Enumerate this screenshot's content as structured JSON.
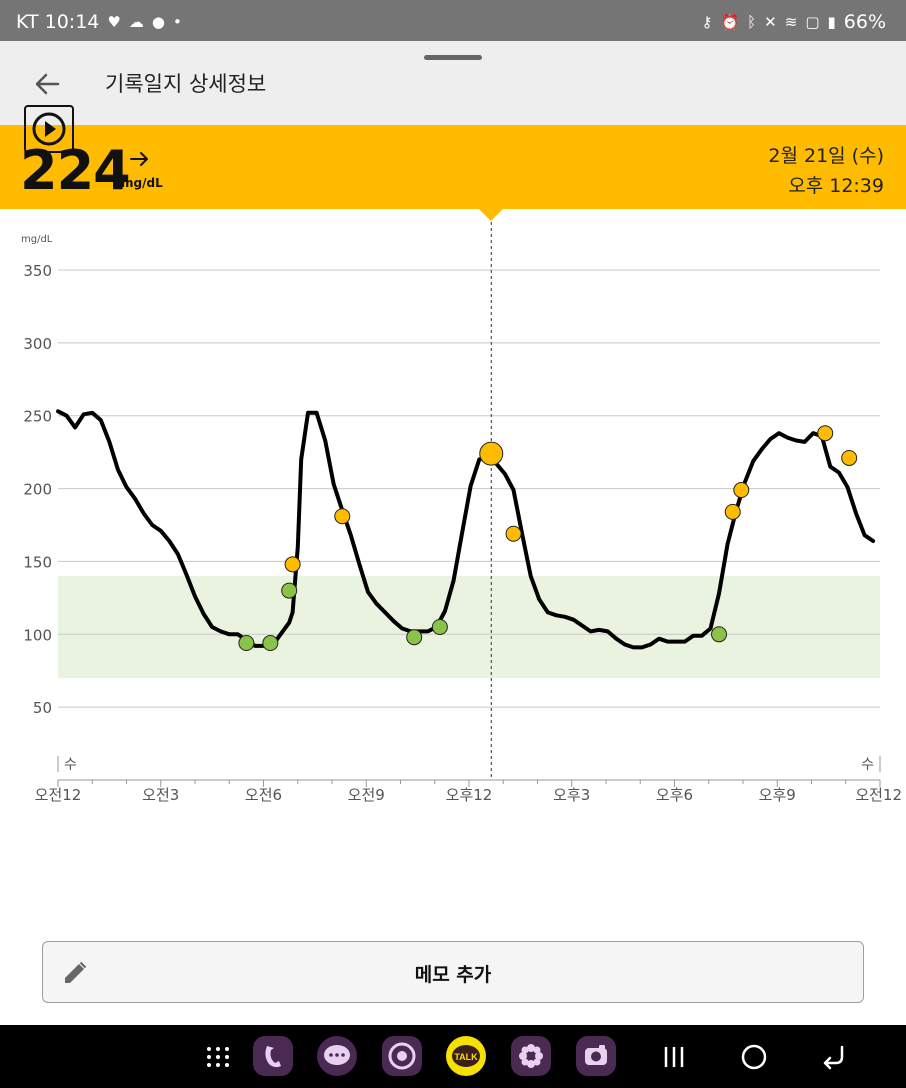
{
  "status": {
    "carrier_time": "KT 10:14",
    "battery": "66%",
    "left_icons": [
      "heart-icon",
      "cloud-icon",
      "badge-icon",
      "dot-icon"
    ],
    "right_icons": [
      "key-icon",
      "alarm-icon",
      "bluetooth-icon",
      "mute-icon",
      "wifi-icon",
      "hd-icon",
      "signal-icon"
    ]
  },
  "header": {
    "title": "기록일지 상세정보"
  },
  "reading": {
    "value": "224",
    "unit": "mg/dL",
    "trend": "arrow-right-icon",
    "date": "2월 21일 (수)",
    "time": "오후 12:39"
  },
  "memo": {
    "label": "메모 추가"
  },
  "colors": {
    "accent": "#ffbb00",
    "status_bar": "#757575",
    "target_range": "#eaf3e0",
    "in_range_dot": "#8bc34a",
    "high_dot": "#ffbb00",
    "line": "#000000"
  },
  "nav": {
    "apps": [
      "apps-grid-icon",
      "phone-icon",
      "messages-icon",
      "chrome-icon",
      "kakaotalk-icon",
      "gallery-icon",
      "camera-icon"
    ],
    "kakao_label": "TALK",
    "system": [
      "recents-icon",
      "home-icon",
      "back-icon"
    ]
  },
  "chart_data": {
    "type": "line",
    "ylabel": "mg/dL",
    "ylim": [
      0,
      350
    ],
    "yticks": [
      50,
      100,
      150,
      200,
      250,
      300,
      350
    ],
    "xlim": [
      0,
      24
    ],
    "xticks": [
      0,
      3,
      6,
      9,
      12,
      15,
      18,
      21,
      24
    ],
    "xtick_labels": [
      "오전12",
      "오전3",
      "오전6",
      "오전9",
      "오후12",
      "오후3",
      "오후6",
      "오후9",
      "오전12"
    ],
    "day_labels": [
      {
        "hour": 0,
        "text": "수"
      },
      {
        "hour": 24,
        "text": "수"
      }
    ],
    "target_range": [
      70,
      140
    ],
    "cursor_hour": 12.65,
    "grid": true,
    "series": [
      {
        "points": [
          [
            0,
            253
          ],
          [
            0.25,
            250
          ],
          [
            0.5,
            242
          ],
          [
            0.75,
            251
          ],
          [
            1,
            252
          ],
          [
            1.25,
            247
          ],
          [
            1.5,
            232
          ],
          [
            1.75,
            213
          ],
          [
            2,
            201
          ],
          [
            2.25,
            193
          ],
          [
            2.5,
            183
          ],
          [
            2.75,
            175
          ],
          [
            3,
            171
          ],
          [
            3.25,
            164
          ],
          [
            3.5,
            155
          ],
          [
            3.75,
            141
          ],
          [
            4,
            126
          ],
          [
            4.25,
            114
          ],
          [
            4.5,
            105
          ],
          [
            4.75,
            102
          ],
          [
            5,
            100
          ],
          [
            5.25,
            100
          ],
          [
            5.5,
            96
          ],
          [
            5.75,
            92
          ],
          [
            6,
            92
          ],
          [
            6.25,
            92
          ],
          [
            6.5,
            100
          ],
          [
            6.75,
            108
          ],
          [
            6.85,
            115
          ],
          [
            7.0,
            160
          ],
          [
            7.1,
            220
          ],
          [
            7.3,
            252
          ],
          [
            7.55,
            252
          ],
          [
            7.8,
            233
          ],
          [
            8.05,
            203
          ],
          [
            8.3,
            185
          ],
          [
            8.55,
            168
          ],
          [
            8.8,
            148
          ],
          [
            9.05,
            129
          ],
          [
            9.3,
            121
          ],
          [
            9.55,
            115
          ],
          [
            9.8,
            109
          ],
          [
            10.05,
            104
          ],
          [
            10.3,
            102
          ],
          [
            10.55,
            102
          ],
          [
            10.8,
            102
          ],
          [
            11.05,
            105
          ],
          [
            11.3,
            116
          ],
          [
            11.55,
            137
          ],
          [
            11.8,
            170
          ],
          [
            12.05,
            202
          ],
          [
            12.3,
            220
          ],
          [
            12.55,
            222
          ],
          [
            12.8,
            217
          ],
          [
            13.05,
            210
          ],
          [
            13.3,
            199
          ],
          [
            13.55,
            169
          ],
          [
            13.8,
            140
          ],
          [
            14.05,
            124
          ],
          [
            14.3,
            115
          ],
          [
            14.55,
            113
          ],
          [
            14.8,
            112
          ],
          [
            15.05,
            110
          ],
          [
            15.3,
            106
          ],
          [
            15.55,
            102
          ],
          [
            15.8,
            103
          ],
          [
            16.05,
            102
          ],
          [
            16.3,
            97
          ],
          [
            16.55,
            93
          ],
          [
            16.8,
            91
          ],
          [
            17.05,
            91
          ],
          [
            17.3,
            93
          ],
          [
            17.55,
            97
          ],
          [
            17.8,
            95
          ],
          [
            18.05,
            95
          ],
          [
            18.3,
            95
          ],
          [
            18.55,
            99
          ],
          [
            18.8,
            99
          ],
          [
            19.05,
            104
          ],
          [
            19.3,
            128
          ],
          [
            19.55,
            162
          ],
          [
            19.8,
            185
          ],
          [
            20.05,
            204
          ],
          [
            20.3,
            219
          ],
          [
            20.55,
            227
          ],
          [
            20.8,
            234
          ],
          [
            21.05,
            238
          ],
          [
            21.3,
            235
          ],
          [
            21.55,
            233
          ],
          [
            21.8,
            232
          ],
          [
            22.05,
            238
          ],
          [
            22.3,
            236
          ],
          [
            22.55,
            215
          ],
          [
            22.8,
            211
          ],
          [
            23.05,
            201
          ],
          [
            23.3,
            183
          ],
          [
            23.55,
            168
          ],
          [
            23.8,
            164
          ]
        ]
      }
    ],
    "markers_in_range": [
      [
        5.5,
        94
      ],
      [
        6.2,
        94
      ],
      [
        6.75,
        130
      ],
      [
        10.4,
        98
      ],
      [
        11.15,
        105
      ],
      [
        19.3,
        100
      ]
    ],
    "markers_high": [
      [
        6.85,
        148
      ],
      [
        8.3,
        181
      ],
      [
        13.3,
        169
      ],
      [
        19.7,
        184
      ],
      [
        19.95,
        199
      ],
      [
        22.4,
        238
      ],
      [
        23.1,
        221
      ]
    ],
    "current_marker": [
      12.65,
      224
    ]
  }
}
